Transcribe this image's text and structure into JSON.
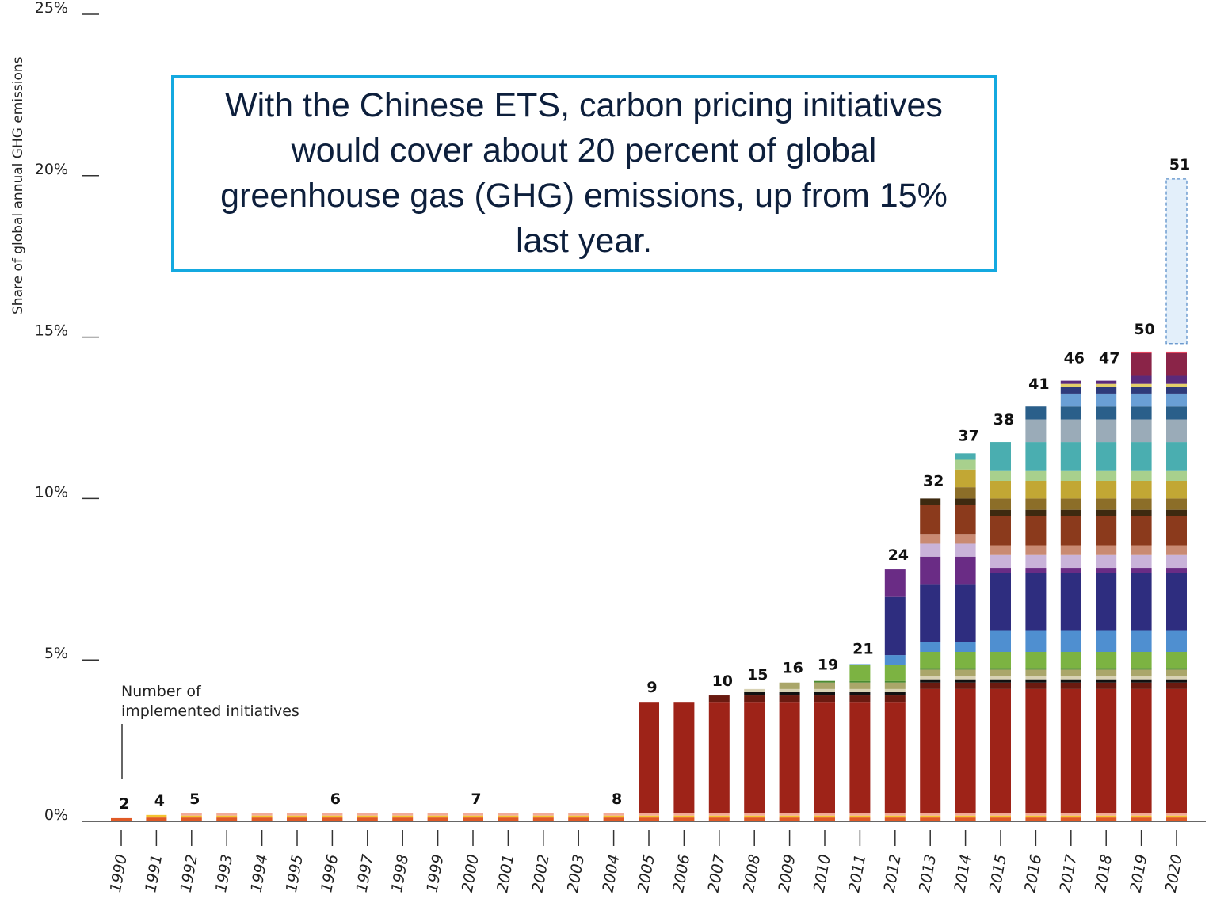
{
  "callout": {
    "text": "With the Chinese ETS, carbon pricing initiatives would cover about 20 percent of global greenhouse gas (GHG) emissions, up from 15% last year."
  },
  "annotation": {
    "line1": "Number of",
    "line2": "implemented initiatives"
  },
  "colors": {
    "eu_ets": "#9e2318",
    "projected_fill": "#e3effa",
    "projected_border": "#5b8fc9",
    "callout_border": "#14a9e0",
    "axis": "#333333"
  },
  "chart_data": {
    "type": "bar",
    "stacked": true,
    "title": "",
    "xlabel": "",
    "ylabel": "Share of global annual GHG emissions",
    "ylim": [
      0,
      25
    ],
    "y_ticks": [
      "0%",
      "5%",
      "10%",
      "15%",
      "20%",
      "25%"
    ],
    "grid": false,
    "categories": [
      "1990",
      "1991",
      "1992",
      "1993",
      "1994",
      "1995",
      "1996",
      "1997",
      "1998",
      "1999",
      "2000",
      "2001",
      "2002",
      "2003",
      "2004",
      "2005",
      "2006",
      "2007",
      "2008",
      "2009",
      "2010",
      "2011",
      "2012",
      "2013",
      "2014",
      "2015",
      "2016",
      "2017",
      "2018",
      "2019",
      "2020"
    ],
    "count_labels": [
      "2",
      "4",
      "5",
      "",
      "",
      "",
      "6",
      "",
      "",
      "",
      "7",
      "",
      "",
      "",
      "8",
      "9",
      "",
      "10",
      "15",
      "16",
      "19",
      "21",
      "24",
      "32",
      "37",
      "38",
      "41",
      "46",
      "47",
      "50",
      "51"
    ],
    "totals": [
      0.1,
      0.2,
      0.25,
      0.25,
      0.25,
      0.25,
      0.25,
      0.25,
      0.25,
      0.25,
      0.25,
      0.25,
      0.25,
      0.25,
      0.25,
      3.7,
      3.7,
      3.9,
      4.1,
      4.3,
      4.4,
      4.9,
      7.8,
      10.1,
      11.5,
      12.0,
      13.1,
      13.9,
      13.9,
      14.8,
      14.8
    ],
    "projected_top": [
      null,
      null,
      null,
      null,
      null,
      null,
      null,
      null,
      null,
      null,
      null,
      null,
      null,
      null,
      null,
      null,
      null,
      null,
      null,
      null,
      null,
      null,
      null,
      null,
      null,
      null,
      null,
      null,
      null,
      null,
      19.9
    ],
    "series": [
      {
        "color": "#e05a26",
        "values": [
          0.1,
          0.12,
          0.12,
          0.12,
          0.12,
          0.12,
          0.12,
          0.12,
          0.12,
          0.12,
          0.12,
          0.12,
          0.12,
          0.12,
          0.12,
          0.12,
          0.12,
          0.12,
          0.12,
          0.12,
          0.12,
          0.12,
          0.12,
          0.12,
          0.12,
          0.12,
          0.12,
          0.12,
          0.12,
          0.12,
          0.12
        ]
      },
      {
        "color": "#f4c430",
        "values": [
          0,
          0.08,
          0.06,
          0.06,
          0.06,
          0.06,
          0.06,
          0.06,
          0.06,
          0.06,
          0.06,
          0.06,
          0.06,
          0.06,
          0.06,
          0.06,
          0.06,
          0.06,
          0.06,
          0.06,
          0.06,
          0.06,
          0.06,
          0.06,
          0.06,
          0.06,
          0.06,
          0.06,
          0.06,
          0.06,
          0.06
        ]
      },
      {
        "color": "#f2aa98",
        "values": [
          0,
          0,
          0.07,
          0.07,
          0.07,
          0.07,
          0.07,
          0.07,
          0.07,
          0.07,
          0.07,
          0.07,
          0.07,
          0.07,
          0.07,
          0.07,
          0.07,
          0.07,
          0.07,
          0.07,
          0.07,
          0.07,
          0.07,
          0.07,
          0.07,
          0.07,
          0.07,
          0.07,
          0.07,
          0.07,
          0.07
        ]
      },
      {
        "color": "#9e2318",
        "values": [
          0,
          0,
          0,
          0,
          0,
          0,
          0,
          0,
          0,
          0,
          0,
          0,
          0,
          0,
          0,
          3.45,
          3.45,
          3.45,
          3.45,
          3.45,
          3.45,
          3.45,
          3.45,
          3.85,
          3.85,
          3.85,
          3.85,
          3.85,
          3.85,
          3.85,
          3.85
        ]
      },
      {
        "color": "#6a1a10",
        "values": [
          0,
          0,
          0,
          0,
          0,
          0,
          0,
          0,
          0,
          0,
          0,
          0,
          0,
          0,
          0,
          0,
          0,
          0.2,
          0.2,
          0.2,
          0.2,
          0.2,
          0.2,
          0.2,
          0.2,
          0.2,
          0.2,
          0.2,
          0.2,
          0.2,
          0.2
        ]
      },
      {
        "color": "#111111",
        "values": [
          0,
          0,
          0,
          0,
          0,
          0,
          0,
          0,
          0,
          0,
          0,
          0,
          0,
          0,
          0,
          0,
          0,
          0,
          0.1,
          0.1,
          0.1,
          0.1,
          0.1,
          0.1,
          0.1,
          0.1,
          0.1,
          0.1,
          0.1,
          0.1,
          0.1
        ]
      },
      {
        "color": "#d8d2b4",
        "values": [
          0,
          0,
          0,
          0,
          0,
          0,
          0,
          0,
          0,
          0,
          0,
          0,
          0,
          0,
          0,
          0,
          0,
          0,
          0.1,
          0.1,
          0.1,
          0.1,
          0.1,
          0.1,
          0.1,
          0.1,
          0.1,
          0.1,
          0.1,
          0.1,
          0.1
        ]
      },
      {
        "color": "#aaa66a",
        "values": [
          0,
          0,
          0,
          0,
          0,
          0,
          0,
          0,
          0,
          0.0,
          0,
          0,
          0,
          0,
          0,
          0,
          0,
          0,
          0,
          0.2,
          0.2,
          0.2,
          0.2,
          0.2,
          0.2,
          0.2,
          0.2,
          0.2,
          0.2,
          0.2,
          0.2
        ]
      },
      {
        "color": "#4c8a30",
        "values": [
          0,
          0,
          0,
          0,
          0,
          0,
          0,
          0,
          0,
          0,
          0,
          0,
          0,
          0,
          0,
          0,
          0,
          0,
          0,
          0,
          0.05,
          0.05,
          0.05,
          0.05,
          0.05,
          0.05,
          0.05,
          0.05,
          0.05,
          0.05,
          0.05
        ]
      },
      {
        "color": "#7cb342",
        "values": [
          0,
          0,
          0,
          0,
          0,
          0,
          0,
          0,
          0,
          0,
          0,
          0,
          0,
          0,
          0,
          0,
          0,
          0,
          0,
          0,
          0,
          0.5,
          0.5,
          0.5,
          0.5,
          0.5,
          0.5,
          0.5,
          0.5,
          0.5,
          0.5
        ]
      },
      {
        "color": "#4f8fd0",
        "values": [
          0,
          0,
          0,
          0,
          0,
          0,
          0,
          0,
          0,
          0,
          0,
          0,
          0,
          0,
          0,
          0,
          0,
          0,
          0,
          0,
          0,
          0.02,
          0.3,
          0.3,
          0.3,
          0.65,
          0.65,
          0.65,
          0.65,
          0.65,
          0.65
        ]
      },
      {
        "color": "#2e2d7f",
        "values": [
          0,
          0,
          0,
          0,
          0,
          0,
          0,
          0,
          0,
          0,
          0,
          0,
          0,
          0,
          0,
          0,
          0,
          0,
          0,
          0,
          0,
          0,
          1.8,
          1.8,
          1.8,
          1.8,
          1.8,
          1.8,
          1.8,
          1.8,
          1.8
        ]
      },
      {
        "color": "#6a2c85",
        "values": [
          0,
          0,
          0,
          0,
          0,
          0,
          0,
          0,
          0,
          0,
          0,
          0,
          0,
          0,
          0,
          0,
          0,
          0,
          0,
          0,
          0,
          0,
          0.85,
          0.85,
          0.85,
          0.15,
          0.15,
          0.15,
          0.15,
          0.15,
          0.15
        ]
      },
      {
        "color": "#c9b3d9",
        "values": [
          0,
          0,
          0,
          0,
          0,
          0,
          0,
          0,
          0,
          0,
          0,
          0,
          0,
          0,
          0,
          0,
          0,
          0,
          0,
          0,
          0,
          0,
          0,
          0.4,
          0.4,
          0.4,
          0.4,
          0.4,
          0.4,
          0.4,
          0.4
        ]
      },
      {
        "color": "#c98a72",
        "values": [
          0,
          0,
          0,
          0,
          0,
          0,
          0,
          0,
          0,
          0,
          0,
          0,
          0,
          0,
          0,
          0,
          0,
          0,
          0,
          0,
          0,
          0,
          0,
          0.3,
          0.3,
          0.3,
          0.3,
          0.3,
          0.3,
          0.3,
          0.3
        ]
      },
      {
        "color": "#8b3a1c",
        "values": [
          0,
          0,
          0,
          0,
          0,
          0,
          0,
          0,
          0,
          0,
          0,
          0,
          0,
          0,
          0,
          0,
          0,
          0,
          0,
          0,
          0,
          0,
          0,
          0.9,
          0.9,
          0.9,
          0.9,
          0.9,
          0.9,
          0.9,
          0.9
        ]
      },
      {
        "color": "#3e2a10",
        "values": [
          0,
          0,
          0,
          0,
          0,
          0,
          0,
          0,
          0,
          0,
          0,
          0,
          0,
          0,
          0,
          0,
          0,
          0,
          0,
          0,
          0,
          0,
          0,
          0.2,
          0.2,
          0.2,
          0.2,
          0.2,
          0.2,
          0.2,
          0.2
        ]
      },
      {
        "color": "#8c6e28",
        "values": [
          0,
          0,
          0,
          0,
          0,
          0,
          0,
          0,
          0,
          0,
          0,
          0,
          0,
          0,
          0,
          0,
          0,
          0,
          0,
          0,
          0,
          0,
          0,
          0,
          0.35,
          0.35,
          0.35,
          0.35,
          0.35,
          0.35,
          0.35
        ]
      },
      {
        "color": "#c2a734",
        "values": [
          0,
          0,
          0,
          0,
          0,
          0,
          0,
          0,
          0,
          0,
          0,
          0,
          0,
          0,
          0,
          0,
          0,
          0,
          0,
          0,
          0,
          0,
          0,
          0,
          0.55,
          0.55,
          0.55,
          0.55,
          0.55,
          0.55,
          0.55
        ]
      },
      {
        "color": "#a8d08d",
        "values": [
          0,
          0,
          0,
          0,
          0,
          0,
          0,
          0,
          0,
          0,
          0,
          0,
          0,
          0,
          0,
          0,
          0,
          0,
          0,
          0,
          0,
          0,
          0,
          0,
          0.3,
          0.3,
          0.3,
          0.3,
          0.3,
          0.3,
          0.3
        ]
      },
      {
        "color": "#4aaeb0",
        "values": [
          0,
          0,
          0,
          0,
          0,
          0,
          0,
          0,
          0,
          0,
          0,
          0,
          0,
          0,
          0,
          0,
          0,
          0,
          0,
          0,
          0,
          0,
          0,
          0,
          0.2,
          0.9,
          0.9,
          0.9,
          0.9,
          0.9,
          0.9
        ]
      },
      {
        "color": "#9aabb8",
        "values": [
          0,
          0,
          0,
          0,
          0,
          0,
          0,
          0,
          0,
          0,
          0,
          0,
          0,
          0,
          0,
          0,
          0,
          0,
          0,
          0,
          0,
          0,
          0,
          0,
          0,
          0,
          0.7,
          0.7,
          0.7,
          0.7,
          0.7
        ]
      },
      {
        "color": "#2a5f8a",
        "values": [
          0,
          0,
          0,
          0,
          0,
          0,
          0,
          0,
          0,
          0,
          0,
          0,
          0,
          0,
          0,
          0,
          0,
          0,
          0,
          0,
          0,
          0,
          0,
          0,
          0,
          0,
          0.4,
          0.4,
          0.4,
          0.4,
          0.4
        ]
      },
      {
        "color": "#6a9fd5",
        "values": [
          0,
          0,
          0,
          0,
          0,
          0,
          0,
          0,
          0,
          0,
          0,
          0,
          0,
          0,
          0,
          0,
          0,
          0,
          0,
          0,
          0,
          0,
          0,
          0,
          0,
          0,
          0,
          0.4,
          0.4,
          0.4,
          0.4
        ]
      },
      {
        "color": "#2e3a7a",
        "values": [
          0,
          0,
          0,
          0,
          0,
          0,
          0,
          0,
          0,
          0,
          0,
          0,
          0,
          0,
          0,
          0,
          0,
          0,
          0,
          0,
          0,
          0,
          0,
          0,
          0,
          0,
          0,
          0.2,
          0.2,
          0.2,
          0.2
        ]
      },
      {
        "color": "#e2cf6a",
        "values": [
          0,
          0,
          0,
          0,
          0,
          0,
          0,
          0,
          0,
          0,
          0,
          0,
          0,
          0,
          0,
          0,
          0,
          0,
          0,
          0,
          0,
          0,
          0,
          0,
          0,
          0,
          0,
          0.1,
          0.1,
          0.1,
          0.1
        ]
      },
      {
        "color": "#5a2a7a",
        "values": [
          0,
          0,
          0,
          0,
          0,
          0,
          0,
          0,
          0,
          0,
          0,
          0,
          0,
          0,
          0,
          0,
          0,
          0,
          0,
          0,
          0,
          0,
          0,
          0,
          0,
          0,
          0,
          0.1,
          0.1,
          0.25,
          0.25
        ]
      },
      {
        "color": "#8a2448",
        "values": [
          0,
          0,
          0,
          0,
          0,
          0,
          0,
          0,
          0,
          0,
          0,
          0,
          0,
          0,
          0,
          0,
          0,
          0,
          0,
          0,
          0,
          0,
          0,
          0,
          0,
          0,
          0,
          0,
          0,
          0.7,
          0.7
        ]
      },
      {
        "color": "#e0405a",
        "values": [
          0,
          0,
          0,
          0,
          0,
          0,
          0,
          0,
          0,
          0,
          0,
          0,
          0,
          0,
          0,
          0,
          0,
          0,
          0,
          0,
          0,
          0,
          0,
          0,
          0,
          0,
          0,
          0,
          0,
          0.05,
          0.05
        ]
      }
    ]
  }
}
